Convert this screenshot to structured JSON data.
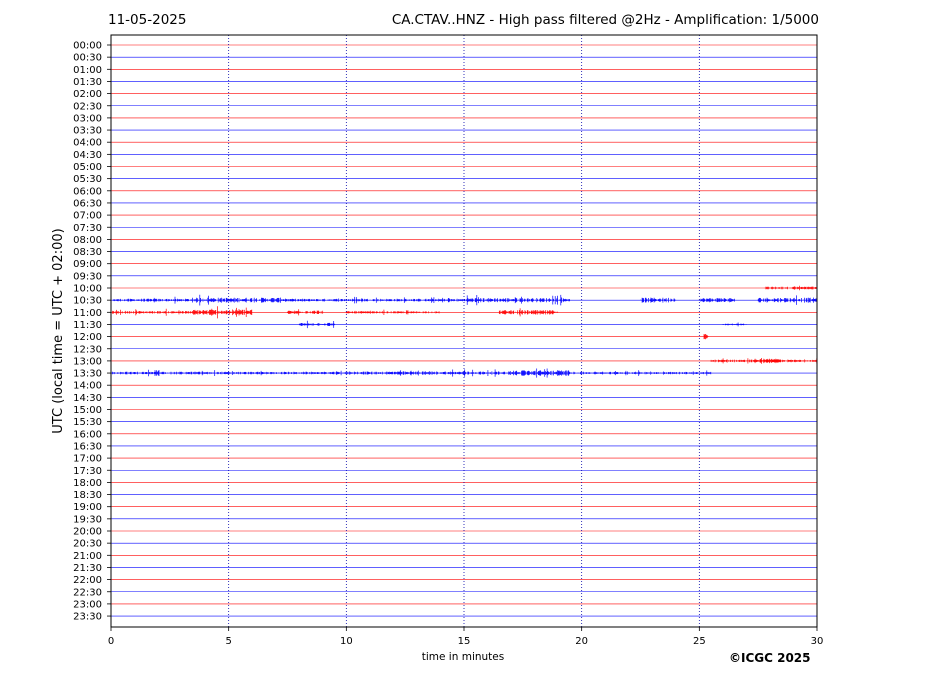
{
  "header": {
    "date": "11-05-2025",
    "title": "CA.CTAV..HNZ - High pass filtered @2Hz - Amplification: 1/5000"
  },
  "footer": {
    "copyright": "©ICGC 2025"
  },
  "chart_data": {
    "type": "line",
    "title": "CA.CTAV..HNZ - High pass filtered @2Hz - Amplification: 1/5000",
    "xlabel": "time in minutes",
    "ylabel": "UTC (local time = UTC + 02:00)",
    "xlim": [
      0,
      30
    ],
    "x_ticks": [
      "0",
      "5",
      "10",
      "15",
      "20",
      "25",
      "30"
    ],
    "x_gridlines": [
      5,
      10,
      15,
      20,
      25
    ],
    "y_tick_labels": [
      "00:00",
      "00:30",
      "01:00",
      "01:30",
      "02:00",
      "02:30",
      "03:00",
      "03:30",
      "04:00",
      "04:30",
      "05:00",
      "05:30",
      "06:00",
      "06:30",
      "07:00",
      "07:30",
      "08:00",
      "08:30",
      "09:00",
      "09:30",
      "10:00",
      "10:30",
      "11:00",
      "11:30",
      "12:00",
      "12:30",
      "13:00",
      "13:30",
      "14:00",
      "14:30",
      "15:00",
      "15:30",
      "16:00",
      "16:30",
      "17:00",
      "17:30",
      "18:00",
      "18:30",
      "19:00",
      "19:30",
      "20:00",
      "20:30",
      "21:00",
      "21:30",
      "22:00",
      "22:30",
      "23:00",
      "23:30"
    ],
    "trace_colors": [
      "#ff0000",
      "#0000ff"
    ],
    "trace_color_note": "traces alternate red/blue by row",
    "active_rows": [
      {
        "row": "10:00",
        "events": [
          [
            27.8,
            30,
            0.5
          ]
        ]
      },
      {
        "row": "10:30",
        "events": [
          [
            0,
            3.5,
            0.5
          ],
          [
            3.5,
            7.5,
            0.9
          ],
          [
            7.5,
            15,
            0.5
          ],
          [
            15,
            19.5,
            0.8
          ],
          [
            22.5,
            24,
            0.9
          ],
          [
            25,
            26.5,
            0.8
          ],
          [
            27.5,
            30,
            0.9
          ]
        ]
      },
      {
        "row": "11:00",
        "events": [
          [
            0,
            3.5,
            0.5
          ],
          [
            3.5,
            6,
            1.0
          ],
          [
            7.5,
            9,
            0.7
          ],
          [
            10,
            14,
            0.4
          ],
          [
            16.5,
            19,
            0.8
          ]
        ]
      },
      {
        "row": "11:30",
        "events": [
          [
            8,
            9.5,
            0.6
          ],
          [
            26,
            27,
            0.3
          ]
        ]
      },
      {
        "row": "12:00",
        "events": [
          [
            25.2,
            25.4,
            1.0
          ]
        ]
      },
      {
        "row": "13:00",
        "events": [
          [
            25.5,
            30,
            0.5
          ],
          [
            27.5,
            28.5,
            0.8
          ]
        ]
      },
      {
        "row": "13:30",
        "events": [
          [
            0,
            4,
            0.5
          ],
          [
            4,
            10,
            0.45
          ],
          [
            10,
            17,
            0.6
          ],
          [
            17,
            19.5,
            1.0
          ],
          [
            19.5,
            24.5,
            0.45
          ],
          [
            24.5,
            25.5,
            0.4
          ]
        ]
      }
    ]
  }
}
